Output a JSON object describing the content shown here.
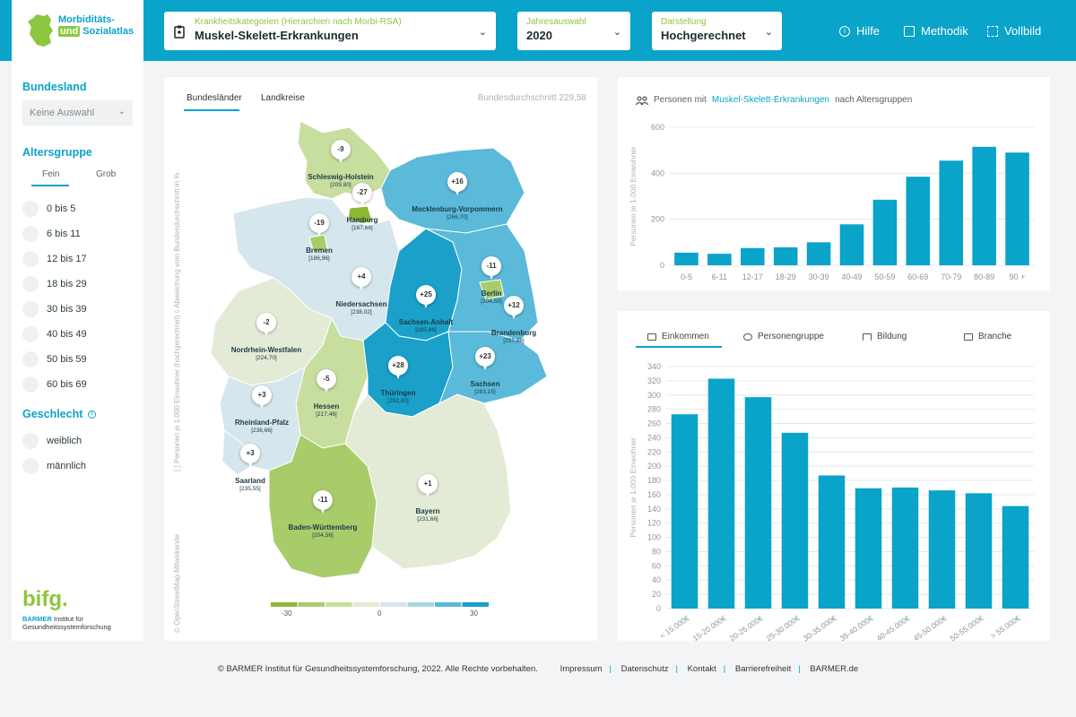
{
  "header": {
    "logo": {
      "line1": "Morbiditäts-",
      "line2a": "und",
      "line2b": "Sozialatlas"
    },
    "category": {
      "label": "Krankheitskategorien (Hierarchien nach Morbi-RSA)",
      "value": "Muskel-Skelett-Erkrankungen"
    },
    "year": {
      "label": "Jahresauswahl",
      "value": "2020"
    },
    "display": {
      "label": "Darstellung",
      "value": "Hochgerechnet"
    },
    "nav": {
      "help": "Hilfe",
      "method": "Methodik",
      "fullscreen": "Vollbild"
    }
  },
  "sidebar": {
    "state_heading": "Bundesland",
    "state_select": "Keine Auswahl",
    "age_heading": "Altersgruppe",
    "age_tabs": [
      "Fein",
      "Grob"
    ],
    "age_groups": [
      "0 bis 5",
      "6 bis 11",
      "12 bis 17",
      "18 bis 29",
      "30 bis 39",
      "40 bis 49",
      "50 bis 59",
      "60 bis 69"
    ],
    "gender_heading": "Geschlecht",
    "genders": [
      "weiblich",
      "männlich"
    ],
    "brand": "bifg.",
    "brand_sub1": "BARMER",
    "brand_sub2": "Institut für",
    "brand_sub3": "Gesundheitssystemforschung"
  },
  "map": {
    "tabs": [
      "Bundesländer",
      "Landkreise"
    ],
    "average": "Bundesdurchschnitt 229,58",
    "side_label": "[ ] Personen je 1.000 Einwohner (hochgerechnet)   ◊ Abweichung vom Bundesdurchschnitt in %",
    "credit": "© OpenStreetMap-Mitwirkende",
    "legend": {
      "min": "-30",
      "mid": "0",
      "max": "30",
      "colors": [
        "#8db735",
        "#a9cc6a",
        "#c8de9e",
        "#e3ebd6",
        "#d5e6ed",
        "#a8d5e4",
        "#5bb9d9",
        "#1aa0c9"
      ]
    },
    "states": [
      {
        "name": "Schleswig-Holstein",
        "dev": "-9",
        "val": "[209,80]"
      },
      {
        "name": "Hamburg",
        "dev": "-27",
        "val": "[167,66]"
      },
      {
        "name": "Mecklenburg-Vorpommern",
        "dev": "+16",
        "val": "[266,70]"
      },
      {
        "name": "Bremen",
        "dev": "-19",
        "val": "[186,96]"
      },
      {
        "name": "Niedersachsen",
        "dev": "+4",
        "val": "[238,02]"
      },
      {
        "name": "Berlin",
        "dev": "-11",
        "val": "[204,55]"
      },
      {
        "name": "Sachsen-Anhalt",
        "dev": "+25",
        "val": "[285,86]"
      },
      {
        "name": "Brandenburg",
        "dev": "+12",
        "val": "[257,58]"
      },
      {
        "name": "Nordrhein-Westfalen",
        "dev": "-2",
        "val": "[224,70]"
      },
      {
        "name": "Thüringen",
        "dev": "+28",
        "val": "[292,80]"
      },
      {
        "name": "Sachsen",
        "dev": "+23",
        "val": "[283,15]"
      },
      {
        "name": "Hessen",
        "dev": "-5",
        "val": "[217,46]"
      },
      {
        "name": "Rheinland-Pfalz",
        "dev": "+3",
        "val": "[236,66]"
      },
      {
        "name": "Saarland",
        "dev": "+3",
        "val": "[235,55]"
      },
      {
        "name": "Baden-Württemberg",
        "dev": "-11",
        "val": "[204,56]"
      },
      {
        "name": "Bayern",
        "dev": "+1",
        "val": "[231,66]"
      }
    ]
  },
  "age_chart": {
    "title_pre": "Personen mit",
    "title_hl": "Muskel-Skelett-Erkrankungen",
    "title_post": "nach Altersgruppen"
  },
  "income_tabs": [
    "Einkommen",
    "Personengruppe",
    "Bildung",
    "Branche"
  ],
  "chart_data": [
    {
      "type": "bar",
      "categories": [
        "0-5",
        "6-11",
        "12-17",
        "18-29",
        "30-39",
        "40-49",
        "50-59",
        "60-69",
        "70-79",
        "80-89",
        "90 +"
      ],
      "values": [
        55,
        50,
        75,
        78,
        100,
        178,
        285,
        385,
        455,
        515,
        490
      ],
      "ylabel": "Personen je 1.000 Einwohner",
      "ylim": [
        0,
        600
      ],
      "yticks": [
        0,
        200,
        400,
        600
      ],
      "grid": true,
      "color": "#0aa3c9"
    },
    {
      "type": "bar",
      "categories": [
        "< 15.000€",
        "15-20.000€",
        "20-25.000€",
        "25-30.000€",
        "30-35.000€",
        "35-40.000€",
        "40-45.000€",
        "45-50.000€",
        "50-55.000€",
        "> 55.000€"
      ],
      "values": [
        273,
        323,
        297,
        247,
        187,
        169,
        170,
        166,
        162,
        144
      ],
      "ylabel": "Personen je 1.000 Einwohner",
      "ylim": [
        0,
        340
      ],
      "yticks": [
        0,
        20,
        40,
        60,
        80,
        100,
        120,
        140,
        160,
        180,
        200,
        220,
        240,
        260,
        280,
        300,
        320,
        340
      ],
      "grid": true,
      "color": "#0aa3c9"
    }
  ],
  "footer": {
    "copyright": "© BARMER Institut für Gesundheitssystemforschung, 2022. Alle Rechte vorbehalten.",
    "links": [
      "Impressum",
      "Datenschutz",
      "Kontakt",
      "Barrierefreiheit",
      "BARMER.de"
    ]
  }
}
